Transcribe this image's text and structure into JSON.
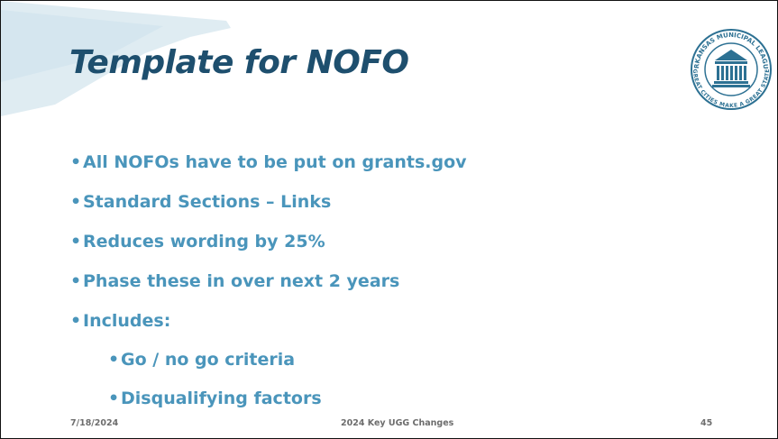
{
  "slide": {
    "title": "Template for NOFO",
    "bullets": [
      {
        "text": "All NOFOs have to be put on grants.gov",
        "level": 1
      },
      {
        "text": "Standard Sections – Links",
        "level": 1
      },
      {
        "text": "Reduces wording by 25%",
        "level": 1
      },
      {
        "text": "Phase these in over next 2 years",
        "level": 1
      },
      {
        "text": "Includes:",
        "level": 1
      },
      {
        "text": "Go / no go criteria",
        "level": 2
      },
      {
        "text": "Disqualifying factors",
        "level": 2
      }
    ],
    "logo": {
      "top_text": "ARKANSAS MUNICIPAL LEAGUE",
      "bottom_text": "GREAT CITIES MAKE A GREAT STATE"
    },
    "footer": {
      "date": "7/18/2024",
      "center": "2024 Key UGG Changes",
      "page": "45"
    }
  }
}
